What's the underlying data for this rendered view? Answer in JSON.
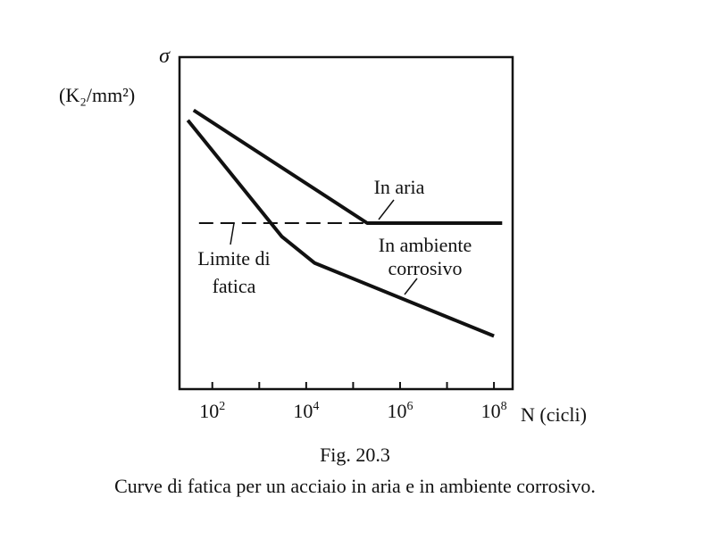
{
  "chart_data": {
    "type": "line",
    "y_symbol": "σ",
    "ylabel": "(K₂/mm²)",
    "xlabel": "N (cicli)",
    "x_scale": "log",
    "xlim": [
      20,
      250000000
    ],
    "ylim": [
      0,
      100
    ],
    "x_ticks": [
      100,
      1000,
      10000,
      100000,
      1000000,
      10000000,
      100000000
    ],
    "x_tick_labels": [
      {
        "exp": 2,
        "text": "10",
        "sup": "2"
      },
      {
        "exp": 4,
        "text": "10",
        "sup": "4"
      },
      {
        "exp": 6,
        "text": "10",
        "sup": "6"
      },
      {
        "exp": 8,
        "text": "10",
        "sup": "8"
      }
    ],
    "series": [
      {
        "name": "In aria",
        "points": [
          [
            40,
            84
          ],
          [
            200000,
            50
          ],
          [
            150000000,
            50
          ]
        ],
        "style": "solid"
      },
      {
        "name": "In ambiente corrosivo",
        "points": [
          [
            30,
            81
          ],
          [
            3000,
            46
          ],
          [
            15000,
            38
          ],
          [
            100000000,
            16
          ]
        ],
        "style": "solid"
      }
    ],
    "reference_line": {
      "name": "Limite di fatica",
      "y": 50,
      "x_range": [
        40,
        200000
      ],
      "style": "dashed"
    },
    "annotations": {
      "in_aria": "In aria",
      "corrosivo_line1": "In ambiente",
      "corrosivo_line2": "corrosivo",
      "limite_line1": "Limite di",
      "limite_line2": "fatica"
    }
  },
  "caption": {
    "number": "Fig. 20.3",
    "text": "Curve di fatica per un acciaio in aria e in ambiente corrosivo."
  }
}
